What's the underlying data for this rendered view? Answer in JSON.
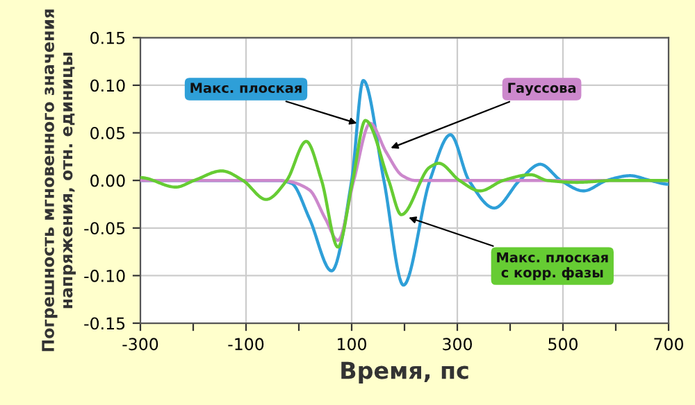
{
  "chart_data": {
    "type": "line",
    "xlabel": "Время, пс",
    "ylabel": "Погрешность мгновенного значения\nнапряжения, отн. единицы",
    "xlim": [
      -300,
      700
    ],
    "ylim": [
      -0.15,
      0.15
    ],
    "xticks": [
      -300,
      {
        "value": -200,
        "label": null
      },
      -100,
      {
        "value": 0,
        "label": null
      },
      100,
      {
        "value": 200,
        "label": null
      },
      300,
      {
        "value": 400,
        "label": null
      },
      500,
      {
        "value": 600,
        "label": null
      },
      700
    ],
    "yticks": [
      -0.15,
      {
        "value": -0.1,
        "label": "-0.10"
      },
      -0.05,
      {
        "value": 0,
        "label": "0.00"
      },
      0.05,
      {
        "value": 0.1,
        "label": "0.10"
      },
      0.15
    ],
    "grid": true,
    "legend": false,
    "marker": "none",
    "line_style": "solid",
    "series": [
      {
        "color": "#2e9fd8",
        "x": [
          -300,
          -100,
          -40,
          -14,
          20,
          62,
          100,
          122,
          161,
          198,
          248,
          287,
          322,
          370,
          418,
          457,
          496,
          539,
          583,
          627,
          665,
          700
        ],
        "values": [
          0,
          0,
          0,
          -0.003,
          -0.04,
          -0.095,
          0,
          0.105,
          0,
          -0.11,
          0,
          0.048,
          0,
          -0.029,
          0,
          0.017,
          0,
          -0.011,
          0,
          0.005,
          0,
          -0.004
        ]
      },
      {
        "color": "#cc88cc",
        "x": [
          -300,
          -40,
          -20,
          20,
          50,
          74,
          104,
          135,
          165,
          196,
          220,
          700
        ],
        "values": [
          0,
          0,
          -0.001,
          -0.01,
          -0.04,
          -0.063,
          0,
          0.06,
          0.03,
          0.005,
          0,
          0
        ]
      },
      {
        "color": "#66cc33",
        "x": [
          -300,
          -233,
          -198,
          -146,
          -106,
          -62,
          -23,
          14,
          43,
          74,
          102,
          126,
          170,
          194,
          248,
          265,
          304,
          343,
          387,
          439,
          470,
          526,
          600,
          700
        ],
        "values": [
          0.003,
          -0.007,
          0,
          0.01,
          0,
          -0.02,
          0,
          0.041,
          0,
          -0.07,
          0,
          0.063,
          0,
          -0.036,
          0.014,
          0.018,
          0,
          -0.011,
          0,
          0.006,
          0,
          -0.002,
          0,
          0
        ]
      }
    ],
    "annotations": [
      {
        "text": "Макс. плоская",
        "x": 110,
        "y": 0.06
      },
      {
        "text": "Гауссова",
        "x": 174,
        "y": 0.034
      },
      {
        "text": "Макс. плоская\nс корр. фазы",
        "x": 208,
        "y": -0.039
      }
    ]
  }
}
